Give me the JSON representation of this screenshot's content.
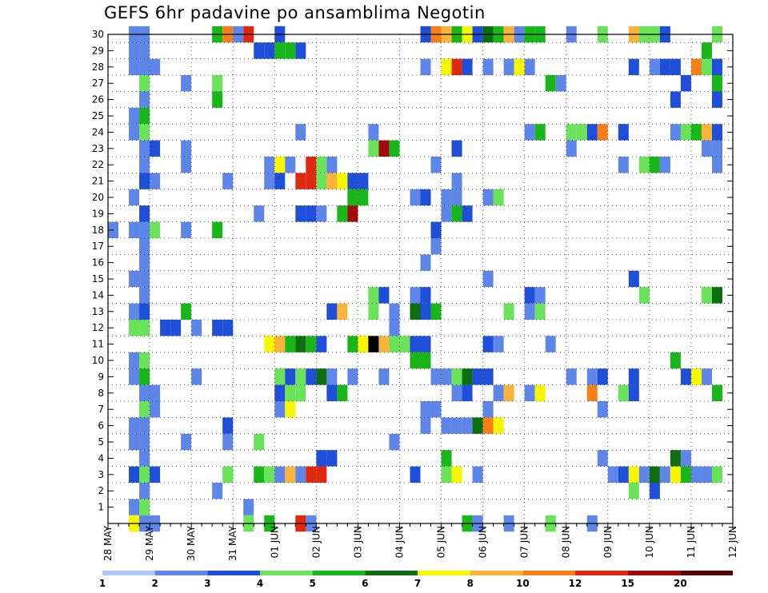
{
  "chart_data": {
    "type": "heatmap",
    "title": "GEFS 6hr padavine po ansamblima Negotin",
    "xlabel": "",
    "ylabel": "",
    "x_tick_labels": [
      "28 MAY",
      "29 MAY",
      "30 MAY",
      "31 MAY",
      "01 JUN",
      "02 JUN",
      "03 JUN",
      "04 JUN",
      "05 JUN",
      "06 JUN",
      "07 JUN",
      "08 JUN",
      "09 JUN",
      "10 JUN",
      "11 JUN",
      "12 JUN"
    ],
    "y_tick_labels": [
      "1",
      "2",
      "3",
      "4",
      "5",
      "6",
      "7",
      "8",
      "9",
      "10",
      "11",
      "12",
      "13",
      "14",
      "15",
      "16",
      "17",
      "18",
      "19",
      "20",
      "21",
      "22",
      "23",
      "24",
      "25",
      "26",
      "27",
      "28",
      "29",
      "30"
    ],
    "x_range": [
      0,
      60
    ],
    "y_range": [
      0,
      30
    ],
    "grid": true,
    "colorbar": {
      "labels": [
        "1",
        "2",
        "3",
        "4",
        "5",
        "6",
        "7",
        "8",
        "10",
        "12",
        "15",
        "20"
      ],
      "colors": [
        "#b3c6f5",
        "#5e86e8",
        "#1f4fd8",
        "#6ae25a",
        "#18b618",
        "#0c6e0c",
        "#f7f700",
        "#fbb339",
        "#f77f17",
        "#e0280f",
        "#a00a0a",
        "#580000"
      ]
    },
    "cells": [
      [
        2,
        30,
        1
      ],
      [
        3,
        30,
        1
      ],
      [
        10,
        30,
        4
      ],
      [
        11,
        30,
        8
      ],
      [
        12,
        30,
        1
      ],
      [
        13,
        30,
        9
      ],
      [
        16,
        30,
        2
      ],
      [
        30,
        30,
        2
      ],
      [
        31,
        30,
        8
      ],
      [
        32,
        30,
        7
      ],
      [
        33,
        30,
        4
      ],
      [
        34,
        30,
        6
      ],
      [
        35,
        30,
        2
      ],
      [
        36,
        30,
        5
      ],
      [
        37,
        30,
        4
      ],
      [
        38,
        30,
        7
      ],
      [
        39,
        30,
        1
      ],
      [
        40,
        30,
        4
      ],
      [
        41,
        30,
        4
      ],
      [
        44,
        30,
        1
      ],
      [
        47,
        30,
        3
      ],
      [
        50,
        30,
        7
      ],
      [
        51,
        30,
        3
      ],
      [
        52,
        30,
        3
      ],
      [
        53,
        30,
        2
      ],
      [
        58,
        30,
        3
      ],
      [
        2,
        29,
        1
      ],
      [
        3,
        29,
        1
      ],
      [
        14,
        29,
        2
      ],
      [
        15,
        29,
        2
      ],
      [
        16,
        29,
        4
      ],
      [
        17,
        29,
        4
      ],
      [
        18,
        29,
        2
      ],
      [
        57,
        29,
        4
      ],
      [
        2,
        28,
        1
      ],
      [
        3,
        28,
        1
      ],
      [
        4,
        28,
        1
      ],
      [
        30,
        28,
        1
      ],
      [
        32,
        28,
        6
      ],
      [
        33,
        28,
        9
      ],
      [
        34,
        28,
        2
      ],
      [
        36,
        28,
        1
      ],
      [
        38,
        28,
        1
      ],
      [
        39,
        28,
        6
      ],
      [
        40,
        28,
        1
      ],
      [
        50,
        28,
        2
      ],
      [
        52,
        28,
        1
      ],
      [
        53,
        28,
        2
      ],
      [
        54,
        28,
        2
      ],
      [
        56,
        28,
        8
      ],
      [
        57,
        28,
        3
      ],
      [
        58,
        28,
        2
      ],
      [
        3,
        27,
        3
      ],
      [
        7,
        27,
        1
      ],
      [
        10,
        27,
        3
      ],
      [
        42,
        27,
        4
      ],
      [
        43,
        27,
        1
      ],
      [
        55,
        27,
        2
      ],
      [
        58,
        27,
        4
      ],
      [
        3,
        26,
        1
      ],
      [
        10,
        26,
        4
      ],
      [
        54,
        26,
        2
      ],
      [
        58,
        26,
        2
      ],
      [
        2,
        25,
        1
      ],
      [
        3,
        25,
        4
      ],
      [
        2,
        24,
        1
      ],
      [
        3,
        24,
        3
      ],
      [
        18,
        24,
        1
      ],
      [
        25,
        24,
        1
      ],
      [
        40,
        24,
        1
      ],
      [
        41,
        24,
        4
      ],
      [
        44,
        24,
        3
      ],
      [
        45,
        24,
        3
      ],
      [
        46,
        24,
        2
      ],
      [
        47,
        24,
        8
      ],
      [
        49,
        24,
        2
      ],
      [
        54,
        24,
        1
      ],
      [
        55,
        24,
        3
      ],
      [
        56,
        24,
        4
      ],
      [
        57,
        24,
        7
      ],
      [
        58,
        24,
        2
      ],
      [
        3,
        23,
        1
      ],
      [
        4,
        23,
        2
      ],
      [
        7,
        23,
        1
      ],
      [
        25,
        23,
        3
      ],
      [
        26,
        23,
        10
      ],
      [
        27,
        23,
        4
      ],
      [
        33,
        23,
        2
      ],
      [
        44,
        23,
        1
      ],
      [
        57,
        23,
        1
      ],
      [
        58,
        23,
        1
      ],
      [
        3,
        22,
        1
      ],
      [
        7,
        22,
        1
      ],
      [
        15,
        22,
        1
      ],
      [
        16,
        22,
        6
      ],
      [
        17,
        22,
        1
      ],
      [
        19,
        22,
        9
      ],
      [
        20,
        22,
        3
      ],
      [
        21,
        22,
        1
      ],
      [
        31,
        22,
        1
      ],
      [
        49,
        22,
        1
      ],
      [
        51,
        22,
        3
      ],
      [
        52,
        22,
        4
      ],
      [
        53,
        22,
        1
      ],
      [
        58,
        22,
        1
      ],
      [
        3,
        21,
        2
      ],
      [
        4,
        21,
        1
      ],
      [
        11,
        21,
        1
      ],
      [
        15,
        21,
        1
      ],
      [
        16,
        21,
        2
      ],
      [
        18,
        21,
        9
      ],
      [
        19,
        21,
        9
      ],
      [
        20,
        21,
        3
      ],
      [
        21,
        21,
        7
      ],
      [
        22,
        21,
        6
      ],
      [
        23,
        21,
        2
      ],
      [
        24,
        21,
        2
      ],
      [
        33,
        21,
        1
      ],
      [
        2,
        20,
        1
      ],
      [
        23,
        20,
        4
      ],
      [
        24,
        20,
        4
      ],
      [
        29,
        20,
        1
      ],
      [
        30,
        20,
        2
      ],
      [
        32,
        20,
        1
      ],
      [
        33,
        20,
        1
      ],
      [
        36,
        20,
        1
      ],
      [
        37,
        20,
        3
      ],
      [
        3,
        19,
        2
      ],
      [
        14,
        19,
        1
      ],
      [
        18,
        19,
        2
      ],
      [
        19,
        19,
        2
      ],
      [
        20,
        19,
        1
      ],
      [
        22,
        19,
        4
      ],
      [
        23,
        19,
        10
      ],
      [
        32,
        19,
        1
      ],
      [
        33,
        19,
        4
      ],
      [
        34,
        19,
        2
      ],
      [
        0,
        18,
        1
      ],
      [
        2,
        18,
        1
      ],
      [
        3,
        18,
        1
      ],
      [
        4,
        18,
        3
      ],
      [
        7,
        18,
        1
      ],
      [
        10,
        18,
        4
      ],
      [
        31,
        18,
        2
      ],
      [
        3,
        17,
        1
      ],
      [
        31,
        17,
        1
      ],
      [
        3,
        16,
        1
      ],
      [
        30,
        16,
        1
      ],
      [
        2,
        15,
        1
      ],
      [
        3,
        15,
        1
      ],
      [
        36,
        15,
        1
      ],
      [
        50,
        15,
        2
      ],
      [
        3,
        14,
        1
      ],
      [
        25,
        14,
        3
      ],
      [
        26,
        14,
        2
      ],
      [
        29,
        14,
        1
      ],
      [
        30,
        14,
        2
      ],
      [
        40,
        14,
        2
      ],
      [
        41,
        14,
        1
      ],
      [
        51,
        14,
        3
      ],
      [
        57,
        14,
        3
      ],
      [
        58,
        14,
        5
      ],
      [
        2,
        13,
        1
      ],
      [
        3,
        13,
        2
      ],
      [
        7,
        13,
        4
      ],
      [
        21,
        13,
        2
      ],
      [
        22,
        13,
        7
      ],
      [
        25,
        13,
        3
      ],
      [
        27,
        13,
        1
      ],
      [
        29,
        13,
        5
      ],
      [
        30,
        13,
        2
      ],
      [
        31,
        13,
        4
      ],
      [
        38,
        13,
        3
      ],
      [
        40,
        13,
        1
      ],
      [
        41,
        13,
        3
      ],
      [
        2,
        12,
        3
      ],
      [
        3,
        12,
        3
      ],
      [
        5,
        12,
        2
      ],
      [
        6,
        12,
        2
      ],
      [
        8,
        12,
        1
      ],
      [
        10,
        12,
        2
      ],
      [
        11,
        12,
        2
      ],
      [
        27,
        12,
        1
      ],
      [
        15,
        11,
        6
      ],
      [
        16,
        11,
        7
      ],
      [
        17,
        11,
        4
      ],
      [
        18,
        11,
        5
      ],
      [
        19,
        11,
        4
      ],
      [
        20,
        11,
        2
      ],
      [
        23,
        11,
        4
      ],
      [
        24,
        11,
        6
      ],
      [
        25,
        11,
        12
      ],
      [
        26,
        11,
        7
      ],
      [
        27,
        11,
        3
      ],
      [
        28,
        11,
        3
      ],
      [
        29,
        11,
        2
      ],
      [
        30,
        11,
        2
      ],
      [
        36,
        11,
        2
      ],
      [
        37,
        11,
        1
      ],
      [
        42,
        11,
        1
      ],
      [
        2,
        10,
        1
      ],
      [
        3,
        10,
        3
      ],
      [
        29,
        10,
        4
      ],
      [
        30,
        10,
        4
      ],
      [
        54,
        10,
        4
      ],
      [
        2,
        9,
        1
      ],
      [
        3,
        9,
        4
      ],
      [
        8,
        9,
        1
      ],
      [
        16,
        9,
        3
      ],
      [
        17,
        9,
        2
      ],
      [
        18,
        9,
        3
      ],
      [
        19,
        9,
        2
      ],
      [
        20,
        9,
        5
      ],
      [
        21,
        9,
        1
      ],
      [
        23,
        9,
        1
      ],
      [
        26,
        9,
        1
      ],
      [
        31,
        9,
        1
      ],
      [
        32,
        9,
        1
      ],
      [
        33,
        9,
        3
      ],
      [
        34,
        9,
        5
      ],
      [
        35,
        9,
        2
      ],
      [
        36,
        9,
        2
      ],
      [
        44,
        9,
        1
      ],
      [
        46,
        9,
        1
      ],
      [
        47,
        9,
        2
      ],
      [
        50,
        9,
        2
      ],
      [
        55,
        9,
        2
      ],
      [
        56,
        9,
        6
      ],
      [
        57,
        9,
        1
      ],
      [
        3,
        8,
        1
      ],
      [
        4,
        8,
        1
      ],
      [
        16,
        8,
        2
      ],
      [
        17,
        8,
        3
      ],
      [
        18,
        8,
        3
      ],
      [
        21,
        8,
        2
      ],
      [
        22,
        8,
        4
      ],
      [
        33,
        8,
        1
      ],
      [
        34,
        8,
        2
      ],
      [
        37,
        8,
        1
      ],
      [
        38,
        8,
        7
      ],
      [
        40,
        8,
        1
      ],
      [
        41,
        8,
        6
      ],
      [
        46,
        8,
        8
      ],
      [
        49,
        8,
        3
      ],
      [
        50,
        8,
        2
      ],
      [
        58,
        8,
        4
      ],
      [
        3,
        7,
        3
      ],
      [
        4,
        7,
        1
      ],
      [
        16,
        7,
        1
      ],
      [
        17,
        7,
        6
      ],
      [
        30,
        7,
        1
      ],
      [
        31,
        7,
        1
      ],
      [
        36,
        7,
        1
      ],
      [
        47,
        7,
        1
      ],
      [
        2,
        6,
        1
      ],
      [
        3,
        6,
        1
      ],
      [
        11,
        6,
        2
      ],
      [
        30,
        6,
        1
      ],
      [
        32,
        6,
        1
      ],
      [
        33,
        6,
        1
      ],
      [
        34,
        6,
        1
      ],
      [
        35,
        6,
        5
      ],
      [
        36,
        6,
        8
      ],
      [
        37,
        6,
        6
      ],
      [
        2,
        5,
        1
      ],
      [
        3,
        5,
        1
      ],
      [
        7,
        5,
        1
      ],
      [
        11,
        5,
        1
      ],
      [
        14,
        5,
        3
      ],
      [
        27,
        5,
        1
      ],
      [
        3,
        4,
        1
      ],
      [
        20,
        4,
        2
      ],
      [
        21,
        4,
        2
      ],
      [
        32,
        4,
        4
      ],
      [
        47,
        4,
        1
      ],
      [
        54,
        4,
        5
      ],
      [
        55,
        4,
        1
      ],
      [
        2,
        3,
        2
      ],
      [
        3,
        3,
        3
      ],
      [
        4,
        3,
        2
      ],
      [
        11,
        3,
        3
      ],
      [
        14,
        3,
        4
      ],
      [
        15,
        3,
        3
      ],
      [
        16,
        3,
        1
      ],
      [
        17,
        3,
        7
      ],
      [
        18,
        3,
        1
      ],
      [
        19,
        3,
        9
      ],
      [
        20,
        3,
        9
      ],
      [
        29,
        3,
        2
      ],
      [
        32,
        3,
        3
      ],
      [
        33,
        3,
        6
      ],
      [
        35,
        3,
        1
      ],
      [
        48,
        3,
        1
      ],
      [
        49,
        3,
        2
      ],
      [
        50,
        3,
        6
      ],
      [
        51,
        3,
        1
      ],
      [
        52,
        3,
        5
      ],
      [
        53,
        3,
        1
      ],
      [
        54,
        3,
        6
      ],
      [
        55,
        3,
        4
      ],
      [
        56,
        3,
        1
      ],
      [
        57,
        3,
        1
      ],
      [
        58,
        3,
        3
      ],
      [
        3,
        2,
        1
      ],
      [
        10,
        2,
        1
      ],
      [
        50,
        2,
        3
      ],
      [
        52,
        2,
        2
      ],
      [
        2,
        1,
        1
      ],
      [
        3,
        1,
        3
      ],
      [
        13,
        1,
        1
      ],
      [
        2,
        0,
        6
      ],
      [
        3,
        0,
        1
      ],
      [
        4,
        0,
        1
      ],
      [
        13,
        0,
        3
      ],
      [
        15,
        0,
        4
      ],
      [
        18,
        0,
        9
      ],
      [
        19,
        0,
        1
      ],
      [
        34,
        0,
        4
      ],
      [
        35,
        0,
        1
      ],
      [
        38,
        0,
        1
      ],
      [
        42,
        0,
        3
      ],
      [
        46,
        0,
        1
      ]
    ]
  }
}
